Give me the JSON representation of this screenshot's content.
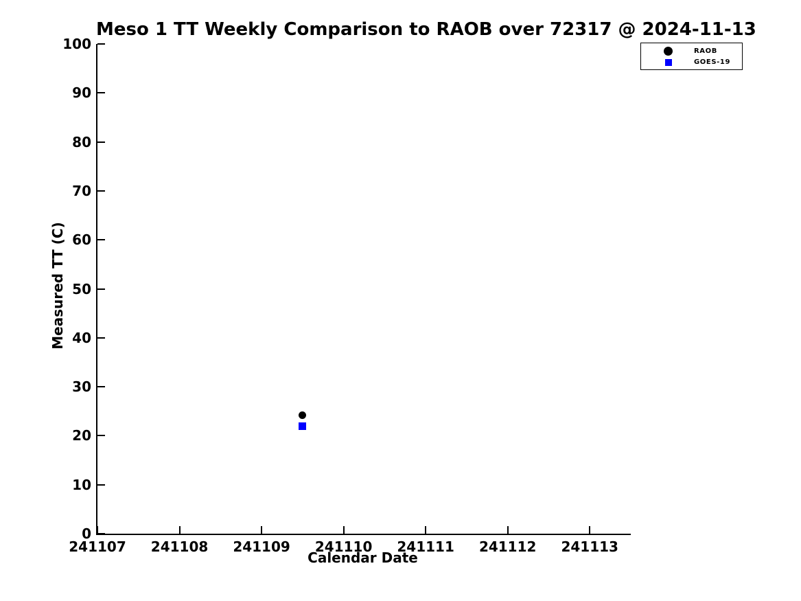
{
  "figure": {
    "background": "#ffffff",
    "text_color": "#000000",
    "axis_color": "#000000"
  },
  "chart_data": {
    "type": "scatter",
    "title": "Meso 1 TT Weekly Comparison to RAOB over 72317 @ 2024-11-13",
    "xlabel": "Calendar Date",
    "ylabel": "Measured TT (C)",
    "xlim": [
      241107,
      241113.5
    ],
    "ylim": [
      0,
      100
    ],
    "x_ticks": [
      241107,
      241108,
      241109,
      241110,
      241111,
      241112,
      241113
    ],
    "y_ticks": [
      0,
      10,
      20,
      30,
      40,
      50,
      60,
      70,
      80,
      90,
      100
    ],
    "grid": false,
    "legend_position": "top-right",
    "series": [
      {
        "name": "RAOB",
        "marker": "circle",
        "color": "#000000",
        "points": [
          {
            "x": 241109.5,
            "y": 24.2
          }
        ]
      },
      {
        "name": "GOES-19",
        "marker": "square",
        "color": "#0000ff",
        "points": [
          {
            "x": 241109.5,
            "y": 21.9
          }
        ]
      }
    ]
  }
}
